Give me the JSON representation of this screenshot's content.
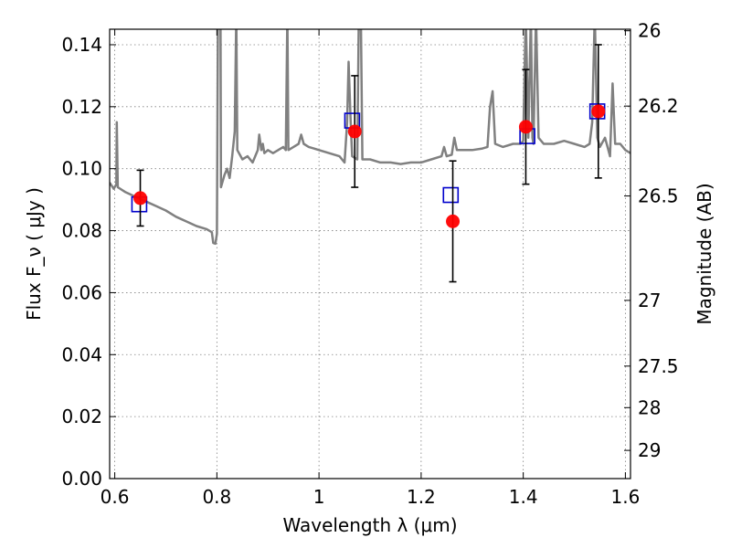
{
  "chart_data": {
    "type": "scatter",
    "title": "",
    "xlabel": "Wavelength  λ (μm)",
    "ylabel": "Flux  F_ν  ( μJy )",
    "y2label": "Magnitude (AB)",
    "xlim": [
      0.59,
      1.61
    ],
    "ylim": [
      0.0,
      0.145
    ],
    "grid": true,
    "x_ticks": [
      0.6,
      0.8,
      1.0,
      1.2,
      1.4,
      1.6
    ],
    "x_tick_labels": [
      "0.6",
      "0.8",
      "1",
      "1.2",
      "1.4",
      "1.6"
    ],
    "y_ticks": [
      0.0,
      0.02,
      0.04,
      0.06,
      0.08,
      0.1,
      0.12,
      0.14
    ],
    "y_tick_labels": [
      "0.00",
      "0.02",
      "0.04",
      "0.06",
      "0.08",
      "0.10",
      "0.12",
      "0.14"
    ],
    "y2_ticks": [
      {
        "label": "26",
        "flux": 0.1445
      },
      {
        "label": "26.2",
        "flux": 0.1202
      },
      {
        "label": "26.5",
        "flux": 0.0912
      },
      {
        "label": "27",
        "flux": 0.0575
      },
      {
        "label": "27.5",
        "flux": 0.0363
      },
      {
        "label": "28",
        "flux": 0.0229
      },
      {
        "label": "29",
        "flux": 0.0091
      }
    ],
    "colors": {
      "model": "#808080",
      "synthetic": "#0000cc",
      "observed": "#ff0000",
      "errorbar": "#000000",
      "grid": "#808080"
    },
    "model_spectrum": [
      [
        0.59,
        0.0955
      ],
      [
        0.598,
        0.0935
      ],
      [
        0.603,
        0.095
      ],
      [
        0.604,
        0.115
      ],
      [
        0.606,
        0.094
      ],
      [
        0.62,
        0.0925
      ],
      [
        0.64,
        0.091
      ],
      [
        0.66,
        0.0895
      ],
      [
        0.68,
        0.088
      ],
      [
        0.7,
        0.0865
      ],
      [
        0.72,
        0.0845
      ],
      [
        0.74,
        0.083
      ],
      [
        0.76,
        0.0815
      ],
      [
        0.78,
        0.0805
      ],
      [
        0.79,
        0.0795
      ],
      [
        0.793,
        0.076
      ],
      [
        0.797,
        0.0758
      ],
      [
        0.8,
        0.079
      ],
      [
        0.802,
        0.15
      ],
      [
        0.807,
        0.15
      ],
      [
        0.808,
        0.094
      ],
      [
        0.815,
        0.098
      ],
      [
        0.82,
        0.1
      ],
      [
        0.825,
        0.097
      ],
      [
        0.83,
        0.104
      ],
      [
        0.835,
        0.112
      ],
      [
        0.838,
        0.15
      ],
      [
        0.84,
        0.106
      ],
      [
        0.85,
        0.103
      ],
      [
        0.86,
        0.104
      ],
      [
        0.87,
        0.102
      ],
      [
        0.88,
        0.106
      ],
      [
        0.883,
        0.111
      ],
      [
        0.887,
        0.106
      ],
      [
        0.89,
        0.108
      ],
      [
        0.893,
        0.105
      ],
      [
        0.9,
        0.106
      ],
      [
        0.91,
        0.105
      ],
      [
        0.92,
        0.106
      ],
      [
        0.93,
        0.107
      ],
      [
        0.935,
        0.106
      ],
      [
        0.938,
        0.15
      ],
      [
        0.94,
        0.106
      ],
      [
        0.95,
        0.107
      ],
      [
        0.96,
        0.108
      ],
      [
        0.965,
        0.111
      ],
      [
        0.97,
        0.108
      ],
      [
        0.98,
        0.107
      ],
      [
        0.99,
        0.1065
      ],
      [
        1.0,
        0.106
      ],
      [
        1.02,
        0.105
      ],
      [
        1.04,
        0.104
      ],
      [
        1.05,
        0.102
      ],
      [
        1.055,
        0.115
      ],
      [
        1.058,
        0.1345
      ],
      [
        1.062,
        0.115
      ],
      [
        1.065,
        0.104
      ],
      [
        1.075,
        0.103
      ],
      [
        1.078,
        0.15
      ],
      [
        1.082,
        0.15
      ],
      [
        1.085,
        0.103
      ],
      [
        1.1,
        0.103
      ],
      [
        1.12,
        0.102
      ],
      [
        1.14,
        0.102
      ],
      [
        1.16,
        0.1015
      ],
      [
        1.18,
        0.102
      ],
      [
        1.2,
        0.102
      ],
      [
        1.22,
        0.103
      ],
      [
        1.24,
        0.104
      ],
      [
        1.245,
        0.107
      ],
      [
        1.25,
        0.104
      ],
      [
        1.26,
        0.1045
      ],
      [
        1.265,
        0.11
      ],
      [
        1.27,
        0.106
      ],
      [
        1.28,
        0.106
      ],
      [
        1.3,
        0.106
      ],
      [
        1.32,
        0.1065
      ],
      [
        1.33,
        0.107
      ],
      [
        1.335,
        0.12
      ],
      [
        1.34,
        0.125
      ],
      [
        1.345,
        0.108
      ],
      [
        1.36,
        0.107
      ],
      [
        1.38,
        0.108
      ],
      [
        1.395,
        0.108
      ],
      [
        1.4,
        0.109
      ],
      [
        1.405,
        0.15
      ],
      [
        1.41,
        0.11
      ],
      [
        1.415,
        0.15
      ],
      [
        1.418,
        0.11
      ],
      [
        1.42,
        0.108
      ],
      [
        1.425,
        0.15
      ],
      [
        1.43,
        0.11
      ],
      [
        1.44,
        0.108
      ],
      [
        1.46,
        0.108
      ],
      [
        1.48,
        0.109
      ],
      [
        1.5,
        0.108
      ],
      [
        1.52,
        0.107
      ],
      [
        1.53,
        0.108
      ],
      [
        1.535,
        0.115
      ],
      [
        1.54,
        0.15
      ],
      [
        1.545,
        0.11
      ],
      [
        1.55,
        0.107
      ],
      [
        1.56,
        0.11
      ],
      [
        1.565,
        0.107
      ],
      [
        1.57,
        0.104
      ],
      [
        1.575,
        0.1275
      ],
      [
        1.58,
        0.108
      ],
      [
        1.59,
        0.108
      ],
      [
        1.6,
        0.106
      ],
      [
        1.61,
        0.105
      ]
    ],
    "synthetic_photometry": [
      {
        "x": 0.648,
        "y": 0.0885
      },
      {
        "x": 1.065,
        "y": 0.1155
      },
      {
        "x": 1.258,
        "y": 0.0915
      },
      {
        "x": 1.408,
        "y": 0.1105
      },
      {
        "x": 1.545,
        "y": 0.1185
      }
    ],
    "observed_photometry": [
      {
        "x": 0.65,
        "y": 0.0905,
        "yerr": 0.009
      },
      {
        "x": 1.07,
        "y": 0.112,
        "yerr": 0.018
      },
      {
        "x": 1.262,
        "y": 0.083,
        "yerr": 0.0195
      },
      {
        "x": 1.405,
        "y": 0.1135,
        "yerr": 0.0185
      },
      {
        "x": 1.547,
        "y": 0.1185,
        "yerr": 0.0215
      }
    ],
    "legend": "none"
  }
}
